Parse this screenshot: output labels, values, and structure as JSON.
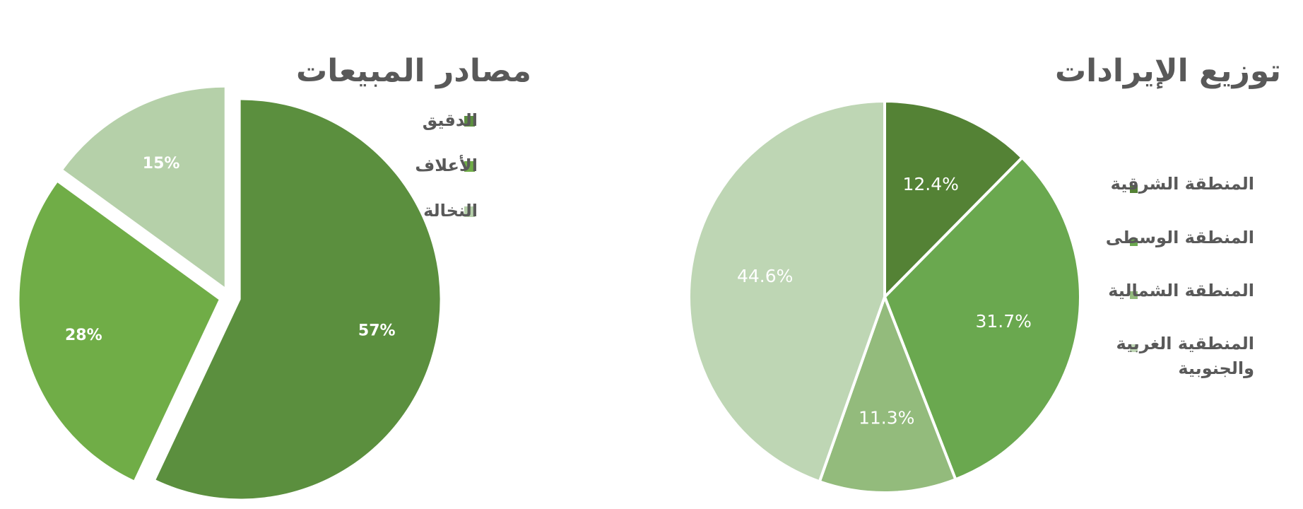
{
  "chart_data": [
    {
      "type": "pie",
      "title": "مصادر المبيعات",
      "categories": [
        "الدقيق",
        "الأعلاف",
        "النخالة"
      ],
      "values": [
        57,
        28,
        15
      ],
      "value_labels": [
        "57%",
        "28%",
        "15%"
      ],
      "colors": [
        "#5b8f3e",
        "#70ad47",
        "#b5d0a9"
      ],
      "exploded": true,
      "legend_position": "top-right"
    },
    {
      "type": "pie",
      "title": "توزيع الإيرادات",
      "categories": [
        "المنطقة الشرقية",
        "المنطقة الوسطى",
        "المنطقة الشمالية",
        "المنطقية الغربية والجنوبية"
      ],
      "legend_lines": [
        [
          "المنطقة الشرقية"
        ],
        [
          "المنطقة الوسطى"
        ],
        [
          "المنطقة الشمالية"
        ],
        [
          "المنطقية الغربية",
          "والجنوبية"
        ]
      ],
      "values": [
        12.4,
        31.7,
        11.3,
        44.6
      ],
      "value_labels": [
        "12.4%",
        "31.7%",
        "11.3%",
        "44.6%"
      ],
      "colors": [
        "#548235",
        "#6aa84f",
        "#93bb7c",
        "#bed6b4"
      ],
      "exploded": false,
      "legend_position": "right"
    }
  ]
}
